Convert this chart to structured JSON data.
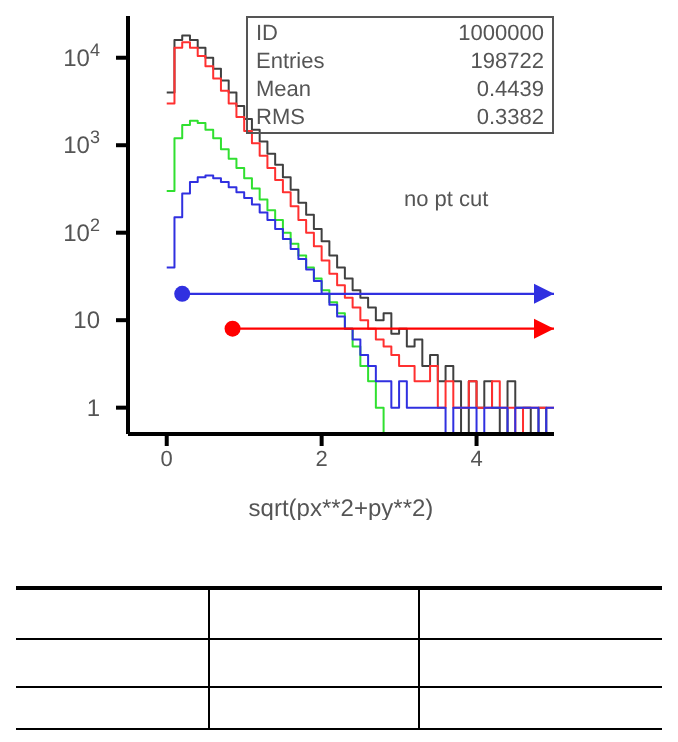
{
  "chart_data": {
    "type": "histogram",
    "xlabel": "sqrt(px**2+py**2)",
    "annotations": [
      "ID",
      "1000000",
      "Entries",
      "198722",
      "Mean",
      "0.4439",
      "RMS",
      "0.3382",
      "no pt cut"
    ],
    "bins": [
      0,
      0.1,
      0.2,
      0.3,
      0.4,
      0.5,
      0.6,
      0.7,
      0.8,
      0.9,
      1,
      1.1,
      1.2,
      1.3,
      1.4,
      1.5,
      1.6,
      1.7,
      1.8,
      1.9,
      2,
      2.1,
      2.2,
      2.3,
      2.4,
      2.5,
      2.6,
      2.7,
      2.8,
      2.9,
      3,
      3.1,
      3.2,
      3.3,
      3.4,
      3.5,
      3.6,
      3.7,
      3.8,
      3.9,
      4,
      4.1,
      4.2,
      4.3,
      4.4,
      4.5,
      4.6,
      4.7,
      4.8,
      4.9,
      5
    ],
    "series": [
      {
        "color": "#404040",
        "values": [
          4000,
          16000,
          18000,
          16000,
          13000,
          10000,
          7500,
          5500,
          4000,
          2800,
          2000,
          1500,
          1100,
          800,
          600,
          430,
          310,
          220,
          160,
          110,
          80,
          55,
          40,
          30,
          22,
          18,
          14,
          10,
          12,
          7,
          8,
          5,
          6,
          3,
          4,
          2,
          3,
          2,
          null,
          2,
          1,
          2,
          1,
          null,
          2,
          1,
          1,
          null,
          1,
          null
        ]
      },
      {
        "color": "#ff3030",
        "values": [
          3000,
          13000,
          15000,
          13000,
          10500,
          8000,
          5800,
          4200,
          3000,
          2100,
          1450,
          1050,
          760,
          550,
          400,
          290,
          200,
          140,
          100,
          70,
          48,
          34,
          25,
          18,
          14,
          10,
          8,
          6,
          5,
          4,
          3,
          3,
          2,
          2,
          3,
          1,
          2,
          1,
          1,
          2,
          1,
          1,
          2,
          1,
          1,
          null,
          1,
          1,
          1,
          1
        ]
      },
      {
        "color": "#30e030",
        "values": [
          300,
          1200,
          1700,
          1900,
          1800,
          1500,
          1200,
          900,
          700,
          550,
          420,
          320,
          240,
          180,
          140,
          100,
          75,
          55,
          40,
          30,
          22,
          16,
          12,
          8,
          5,
          3,
          2,
          1,
          null,
          null,
          null,
          null,
          null,
          null,
          null,
          null,
          null,
          null,
          null,
          null,
          null,
          null,
          null,
          null,
          null,
          null,
          null,
          null,
          null,
          null
        ]
      },
      {
        "color": "#3030e0",
        "values": [
          40,
          150,
          280,
          380,
          430,
          450,
          420,
          380,
          330,
          290,
          250,
          210,
          170,
          140,
          110,
          85,
          65,
          50,
          38,
          28,
          20,
          15,
          11,
          8,
          6,
          4,
          3,
          2,
          2,
          1,
          2,
          1,
          1,
          1,
          1,
          1,
          null,
          1,
          1,
          1,
          null,
          1,
          1,
          1,
          null,
          1,
          1,
          1,
          null,
          1
        ]
      },
      {
        "type": "line",
        "color": "#3030e0",
        "marker": "circle",
        "x": [
          0.2,
          5
        ],
        "values": [
          20,
          20
        ]
      },
      {
        "type": "line",
        "color": "#ff0000",
        "marker": "circle",
        "x": [
          0.85,
          5
        ],
        "values": [
          8,
          8
        ]
      }
    ],
    "log": "y",
    "xlim": [
      -0.5,
      5
    ],
    "xticks": [
      0,
      2,
      4
    ],
    "ylim": [
      0.5,
      30000
    ],
    "yticks": [
      1,
      10,
      {
        "value": 100,
        "label": "10$^{2}$"
      },
      {
        "value": 1000,
        "label": "10$^{3}$"
      },
      {
        "value": 10000,
        "label": "10$^{4}$"
      }
    ]
  }
}
